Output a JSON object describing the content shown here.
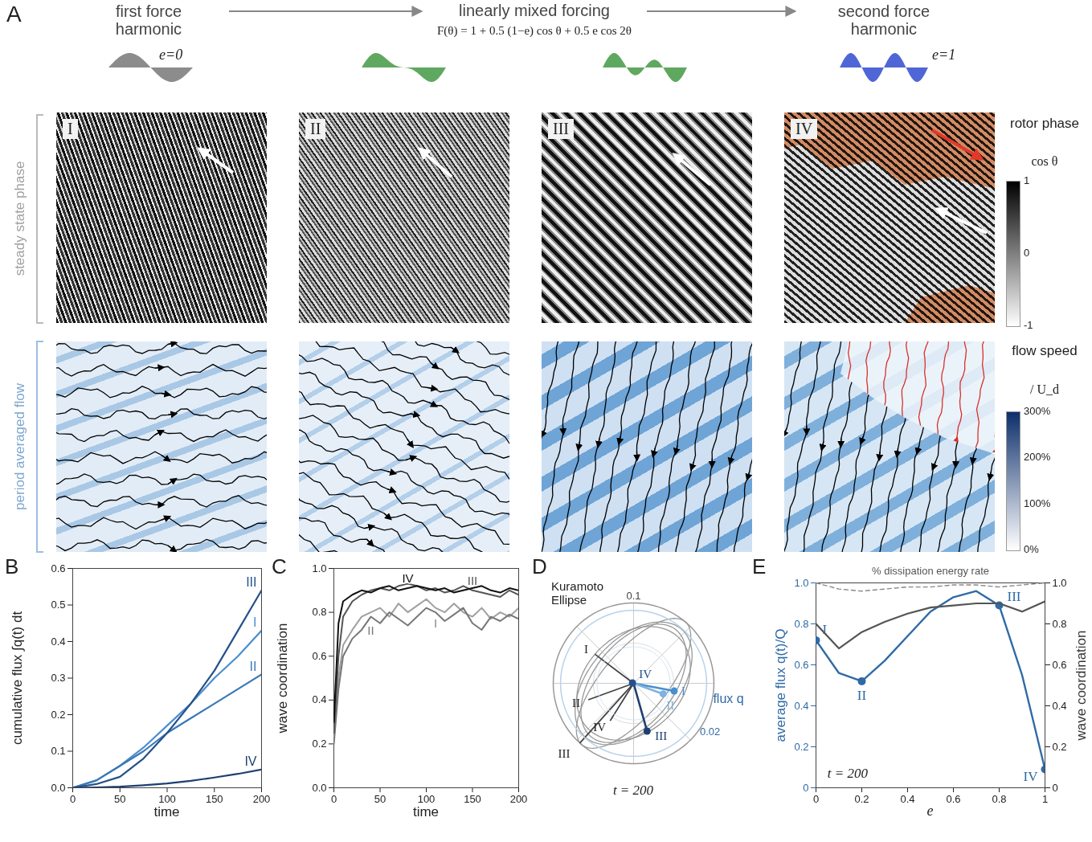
{
  "panel_A": {
    "letter": "A",
    "header": {
      "left": "first force harmonic",
      "center": "linearly mixed forcing",
      "formula": "F(θ) = 1 + 0.5 (1−e) cos θ + 0.5 e cos 2θ",
      "right": "second force harmonic",
      "left_tag": "e=0",
      "right_tag": "e=1"
    },
    "row_labels": [
      "steady state phase",
      "period averaged flow"
    ],
    "panels": [
      "I",
      "II",
      "III",
      "IV"
    ],
    "colorbars": [
      {
        "title": "rotor phase",
        "subtitle": "cos θ",
        "range": [
          -1,
          1
        ],
        "ticks": [
          1,
          0,
          -1
        ],
        "colors": [
          "#ffffff",
          "#000000"
        ]
      },
      {
        "title": "flow speed",
        "subtitle": "/ U_d",
        "range": [
          0,
          300
        ],
        "ticks": [
          {
            "value": 300,
            "label": "300%"
          },
          {
            "value": 200,
            "label": "200%"
          },
          {
            "value": 100,
            "label": "100%"
          },
          {
            "value": 0,
            "label": "0%"
          }
        ],
        "colors": [
          "#ffffff",
          "#0d2f6b"
        ]
      }
    ]
  },
  "chart_data": [
    {
      "letter": "B",
      "type": "line",
      "x_label": "time",
      "y_label": "cumulative flux ∫q(t) dt",
      "xlim": [
        0,
        200
      ],
      "xticks": [
        0,
        50,
        100,
        150,
        200
      ],
      "ylim": [
        0,
        0.6
      ],
      "yticks": [
        {
          "value": 0,
          "label": "0.0"
        },
        0.1,
        0.2,
        0.3,
        0.4,
        0.5,
        0.6
      ],
      "x": [
        0,
        25,
        50,
        75,
        100,
        125,
        150,
        175,
        200
      ],
      "series": [
        {
          "name": "I",
          "color": "#4a8fd0",
          "values": [
            0,
            0.02,
            0.06,
            0.11,
            0.17,
            0.23,
            0.3,
            0.36,
            0.43
          ]
        },
        {
          "name": "II",
          "color": "#3a78b8",
          "values": [
            0,
            0.02,
            0.06,
            0.1,
            0.15,
            0.19,
            0.23,
            0.27,
            0.31
          ]
        },
        {
          "name": "III",
          "color": "#24518a",
          "values": [
            0,
            0.01,
            0.03,
            0.08,
            0.15,
            0.23,
            0.32,
            0.43,
            0.54
          ]
        },
        {
          "name": "IV",
          "color": "#1d3f70",
          "values": [
            0,
            0.001,
            0.003,
            0.007,
            0.012,
            0.019,
            0.028,
            0.038,
            0.05
          ]
        }
      ]
    },
    {
      "letter": "C",
      "type": "line",
      "x_label": "time",
      "y_label": "wave coordination",
      "xlim": [
        0,
        200
      ],
      "xticks": [
        0,
        50,
        100,
        150,
        200
      ],
      "ylim": [
        0,
        1
      ],
      "yticks": [
        {
          "value": 0,
          "label": "0.0"
        },
        0.2,
        0.4,
        0.6,
        0.8,
        {
          "value": 1,
          "label": "1.0"
        }
      ],
      "x": [
        0,
        5,
        10,
        20,
        30,
        40,
        50,
        60,
        70,
        80,
        90,
        100,
        110,
        120,
        130,
        140,
        150,
        160,
        170,
        180,
        190,
        200
      ],
      "series": [
        {
          "name": "I",
          "color": "#a0a0a0",
          "values": [
            0.22,
            0.5,
            0.65,
            0.72,
            0.78,
            0.8,
            0.82,
            0.78,
            0.84,
            0.8,
            0.83,
            0.86,
            0.82,
            0.8,
            0.84,
            0.8,
            0.78,
            0.82,
            0.77,
            0.8,
            0.78,
            0.82
          ]
        },
        {
          "name": "II",
          "color": "#777777",
          "values": [
            0.2,
            0.45,
            0.6,
            0.68,
            0.72,
            0.78,
            0.75,
            0.8,
            0.77,
            0.74,
            0.78,
            0.82,
            0.8,
            0.76,
            0.79,
            0.82,
            0.75,
            0.72,
            0.78,
            0.76,
            0.79,
            0.77
          ]
        },
        {
          "name": "III",
          "color": "#555555",
          "values": [
            0.25,
            0.6,
            0.78,
            0.85,
            0.88,
            0.9,
            0.91,
            0.9,
            0.92,
            0.93,
            0.92,
            0.9,
            0.91,
            0.89,
            0.9,
            0.92,
            0.9,
            0.89,
            0.88,
            0.87,
            0.9,
            0.88
          ]
        },
        {
          "name": "IV",
          "color": "#111111",
          "values": [
            0.3,
            0.75,
            0.85,
            0.88,
            0.9,
            0.89,
            0.91,
            0.92,
            0.9,
            0.91,
            0.92,
            0.91,
            0.9,
            0.91,
            0.89,
            0.9,
            0.91,
            0.92,
            0.9,
            0.89,
            0.91,
            0.9
          ]
        }
      ]
    },
    {
      "letter": "D",
      "type": "polar",
      "title": "Kuramoto Ellipse",
      "subtitle": "t = 200",
      "kuramoto": {
        "lim": [
          -0.1,
          0.1
        ],
        "ring": 0.1,
        "ellipses": [
          {
            "name": "I",
            "major": 0.085,
            "minor": 0.05,
            "angle": 52,
            "direction": 143,
            "length": 0.06
          },
          {
            "name": "II",
            "major": 0.09,
            "minor": 0.055,
            "angle": 48,
            "direction": 200,
            "length": 0.06
          },
          {
            "name": "III",
            "major": 0.1,
            "minor": 0.04,
            "angle": 50,
            "direction": 228,
            "length": 0.1
          },
          {
            "name": "IV",
            "major": 0.08,
            "minor": 0.06,
            "angle": 45,
            "direction": 238,
            "length": 0.055
          }
        ]
      },
      "flux": {
        "label": "flux q",
        "lim": [
          -0.022,
          0.022
        ],
        "ring": 0.02,
        "vectors": [
          {
            "name": "I",
            "x": 0.0111,
            "y": -0.0021,
            "color": "#4a8fd0"
          },
          {
            "name": "II",
            "x": 0.0081,
            "y": -0.0029,
            "color": "#7fb2de"
          },
          {
            "name": "III",
            "x": 0.0037,
            "y": -0.0131,
            "color": "#1d3f70"
          },
          {
            "name": "IV",
            "x": -0.0003,
            "y": 0.0001,
            "color": "#24518a"
          }
        ]
      }
    },
    {
      "letter": "E",
      "type": "line",
      "x_label": "e",
      "annotation": "t = 200",
      "xlim": [
        0,
        1
      ],
      "xticks": [
        0,
        0.2,
        0.4,
        0.6,
        0.8,
        1
      ],
      "ylim": [
        0,
        1
      ],
      "yticks": [
        0,
        0.2,
        0.4,
        0.6,
        0.8,
        {
          "value": 1,
          "label": "1.0"
        }
      ],
      "y2lim": [
        0,
        1
      ],
      "y2ticks": [
        0,
        0.2,
        0.4,
        0.6,
        0.8,
        {
          "value": 1,
          "label": "1.0"
        }
      ],
      "x": [
        0,
        0.1,
        0.2,
        0.3,
        0.4,
        0.5,
        0.6,
        0.7,
        0.8,
        0.9,
        1
      ],
      "point_labels": [
        "I",
        null,
        "II",
        null,
        null,
        null,
        null,
        null,
        "III",
        null,
        "IV"
      ],
      "series": [
        {
          "name": "average flux q(t)/Q",
          "axis": "y",
          "color": "#2f6aa6",
          "marker": "circle",
          "values": [
            0.72,
            0.56,
            0.52,
            0.62,
            0.74,
            0.86,
            0.93,
            0.96,
            0.89,
            0.55,
            0.09
          ]
        },
        {
          "name": "wave coordination",
          "axis": "y2",
          "color": "#555555",
          "values": [
            0.8,
            0.68,
            0.76,
            0.81,
            0.85,
            0.88,
            0.89,
            0.9,
            0.9,
            0.86,
            0.91
          ]
        },
        {
          "name": "% dissipation energy rate",
          "axis": "y",
          "color": "#888888",
          "line_style": "dashed",
          "values": [
            1,
            0.97,
            0.96,
            0.97,
            0.98,
            0.98,
            0.99,
            0.99,
            0.98,
            0.99,
            1
          ]
        }
      ]
    }
  ]
}
